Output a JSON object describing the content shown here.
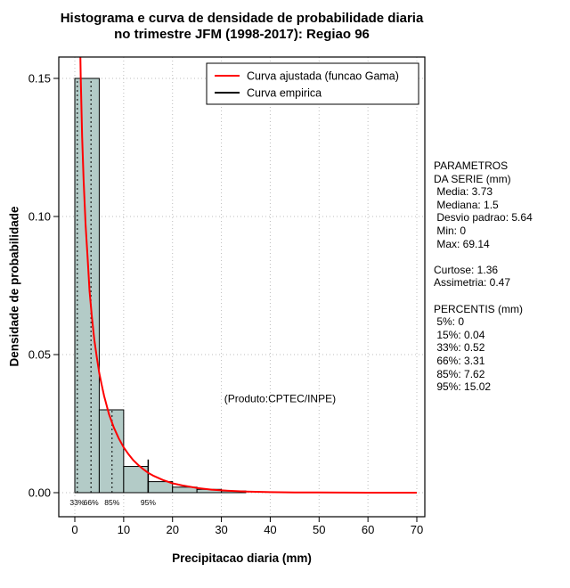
{
  "title": {
    "line1": "Histograma e curva de densidade de probabilidade diaria",
    "line2": "no trimestre JFM (1998-2017): Regiao 96"
  },
  "chart_data": {
    "type": "bar",
    "subtype": "histogram-with-density-curve",
    "title": "Histograma e curva de densidade de probabilidade diaria no trimestre JFM (1998-2017): Regiao 96",
    "xlabel": "Precipitacao diaria (mm)",
    "ylabel": "Densidade de probabilidade",
    "xlim": [
      0,
      70
    ],
    "ylim": [
      0,
      0.155
    ],
    "grid": "dotted",
    "xticks": [
      0,
      10,
      20,
      30,
      40,
      50,
      60,
      70
    ],
    "yticks": [
      0,
      0.05,
      0.1,
      0.15
    ],
    "ytick_labels": [
      "0.00",
      "0.05",
      "0.10",
      "0.15"
    ],
    "histogram": {
      "bin_edges": [
        0,
        5,
        10,
        15,
        20,
        25,
        30,
        35
      ],
      "densities": [
        0.15,
        0.03,
        0.0095,
        0.004,
        0.002,
        0.0012,
        0.0006
      ],
      "fill": "#b3cbc7",
      "stroke": "#000000"
    },
    "fitted_curve": {
      "name": "Curva ajustada (funcao Gama)",
      "color": "#ff0000",
      "points": [
        [
          0.32,
          0.353
        ],
        [
          0.4,
          0.31
        ],
        [
          0.5,
          0.269
        ],
        [
          0.6,
          0.242
        ],
        [
          0.8,
          0.199
        ],
        [
          1,
          0.172
        ],
        [
          1.2,
          0.151
        ],
        [
          1.5,
          0.129
        ],
        [
          1.8,
          0.113
        ],
        [
          2.2,
          0.097
        ],
        [
          2.6,
          0.0855
        ],
        [
          3,
          0.0732
        ],
        [
          3.5,
          0.0635
        ],
        [
          4,
          0.0554
        ],
        [
          4.5,
          0.049
        ],
        [
          5,
          0.0434
        ],
        [
          5.5,
          0.039
        ],
        [
          6,
          0.035
        ],
        [
          7,
          0.0284
        ],
        [
          8,
          0.0235
        ],
        [
          9,
          0.0196
        ],
        [
          10,
          0.0164
        ],
        [
          11,
          0.0139
        ],
        [
          12,
          0.0117
        ],
        [
          13,
          0.01
        ],
        [
          14,
          0.0085
        ],
        [
          15,
          0.0072
        ],
        [
          16,
          0.0062
        ],
        [
          18,
          0.0046
        ],
        [
          20,
          0.0034
        ],
        [
          22,
          0.0026
        ],
        [
          25,
          0.0017
        ],
        [
          28,
          0.0011
        ],
        [
          30,
          0.00085
        ],
        [
          32,
          0.00066
        ],
        [
          35,
          0.00042
        ],
        [
          38,
          0.00028
        ],
        [
          40,
          0.0002
        ],
        [
          45,
          0.0001
        ],
        [
          50,
          5e-05
        ],
        [
          55,
          2.5e-05
        ],
        [
          60,
          1e-05
        ],
        [
          65,
          4e-06
        ],
        [
          70,
          2e-06
        ]
      ]
    },
    "empirical_curve": {
      "name": "Curva empirica",
      "color": "#000000"
    },
    "percentile_lines": [
      {
        "label": "33%",
        "x": 0.52,
        "top": 0.15,
        "style": "dotted"
      },
      {
        "label": "66%",
        "x": 3.31,
        "top": 0.15,
        "style": "dotted"
      },
      {
        "label": "85%",
        "x": 7.62,
        "top": 0.03,
        "style": "dotted"
      },
      {
        "label": "95%",
        "x": 15.02,
        "top": 0.012,
        "style": "solid"
      }
    ],
    "annotation": {
      "text": "(Produto:CPTEC/INPE)",
      "x": 42,
      "y": 0.034
    },
    "legend": {
      "position": "top",
      "items": [
        {
          "label": "Curva ajustada (funcao Gama)",
          "color": "#ff0000"
        },
        {
          "label": "Curva empirica",
          "color": "#000000"
        }
      ]
    }
  },
  "stats_panel": {
    "lines": [
      "PARAMETROS",
      "DA SERIE (mm)",
      " Media: 3.73",
      " Mediana: 1.5",
      " Desvio padrao: 5.64",
      " Min: 0",
      " Max: 69.14",
      "",
      "Curtose: 1.36",
      "Assimetria: 0.47",
      "",
      "PERCENTIS (mm)",
      " 5%: 0",
      " 15%: 0.04",
      " 33%: 0.52",
      " 66%: 3.31",
      " 85%: 7.62",
      " 95%: 15.02"
    ]
  }
}
